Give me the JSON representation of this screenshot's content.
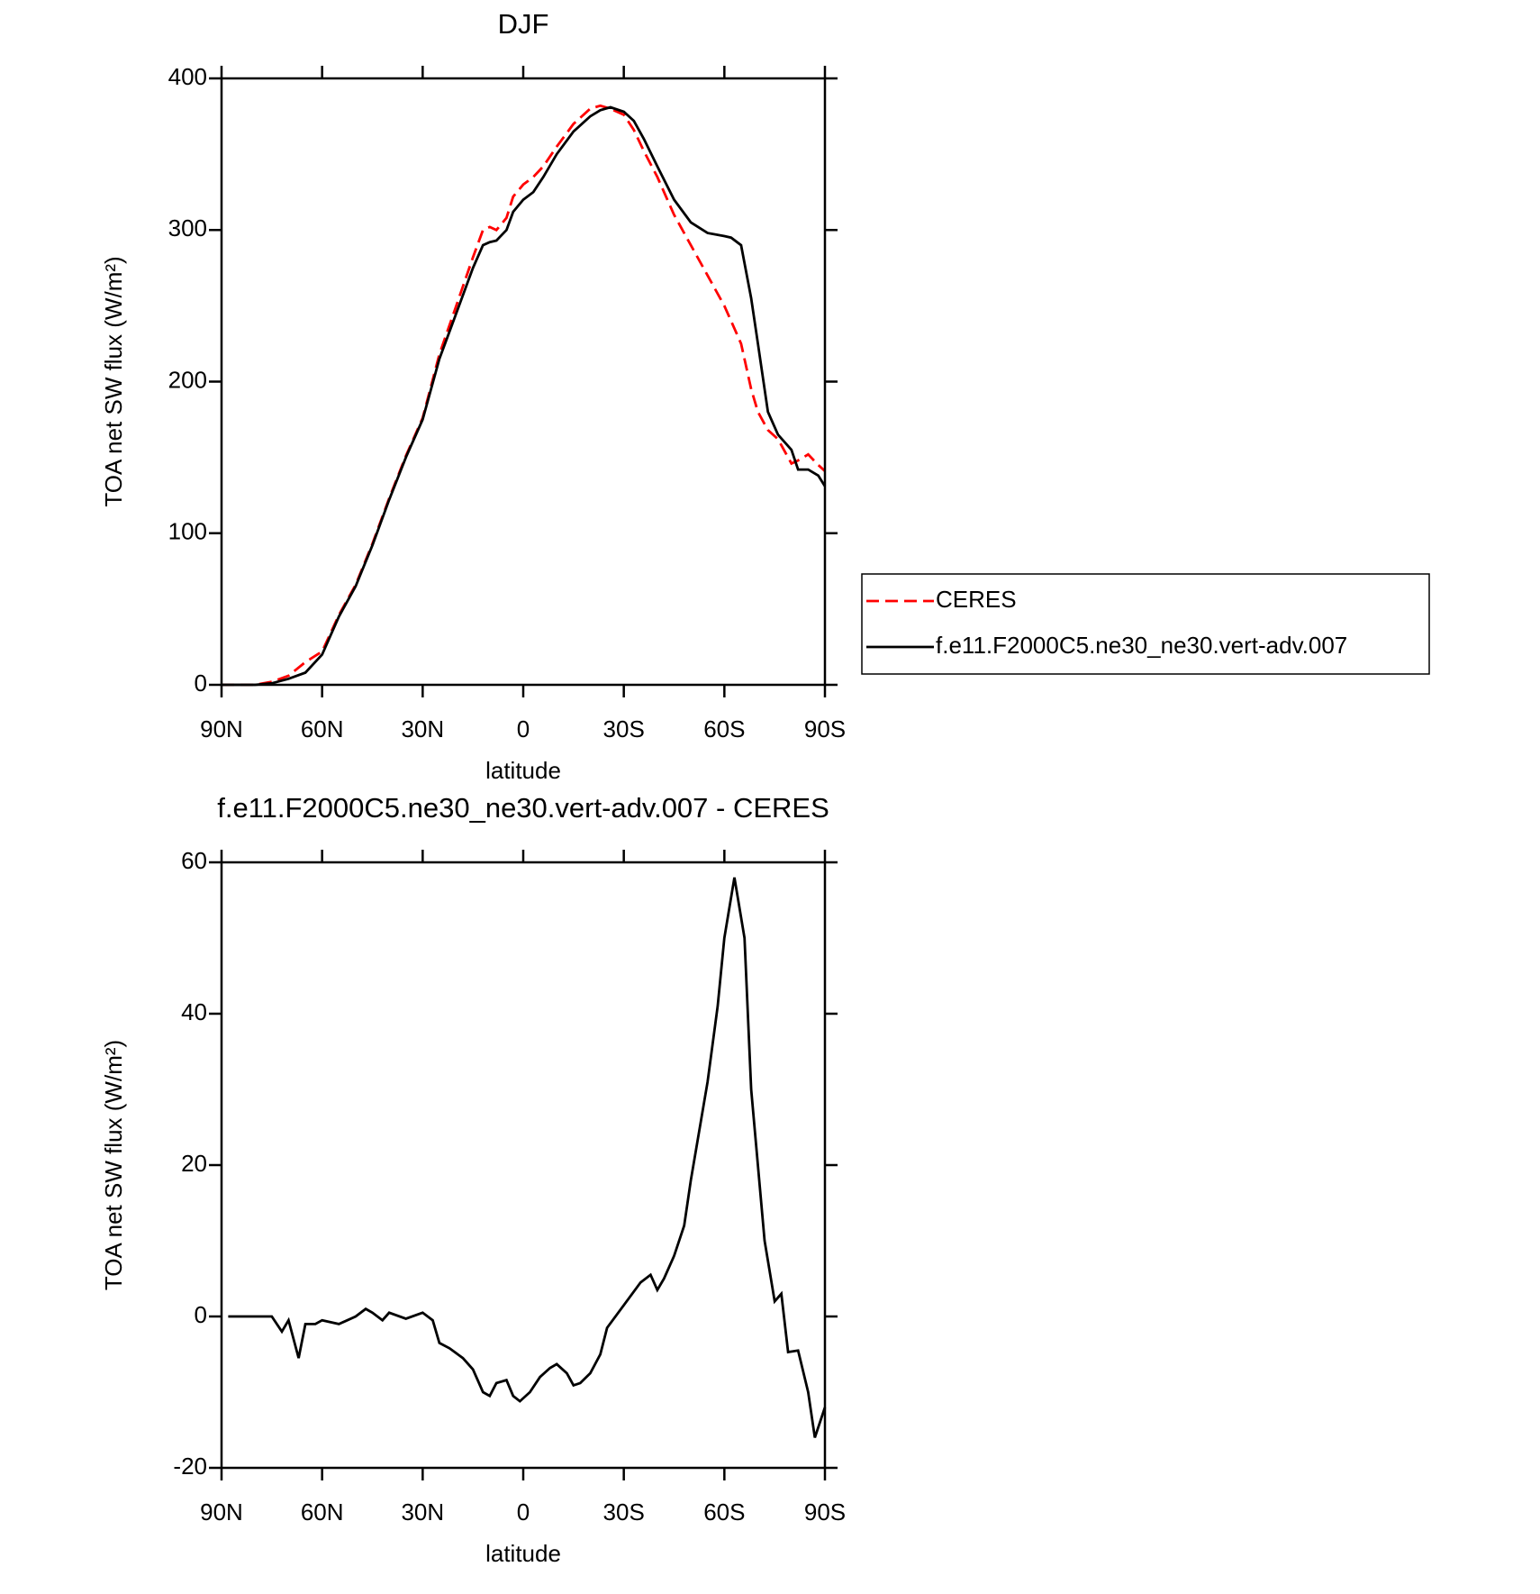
{
  "chart_data": [
    {
      "type": "line",
      "title": "DJF",
      "xlabel": "latitude",
      "ylabel": "TOA net SW flux (W/m²)",
      "x": [
        90,
        85,
        80,
        75,
        70,
        65,
        60,
        55,
        50,
        45,
        40,
        35,
        30,
        25,
        20,
        15,
        12,
        10,
        8,
        5,
        3,
        0,
        -3,
        -6,
        -10,
        -15,
        -20,
        -23,
        -26,
        -30,
        -33,
        -36,
        -40,
        -45,
        -50,
        -55,
        -60,
        -62,
        -65,
        -68,
        -70,
        -73,
        -76,
        -80,
        -82,
        -85,
        -88,
        -90
      ],
      "series": [
        {
          "name": "CERES",
          "color": "#ff0000",
          "linestyle": "dashed",
          "values": [
            0,
            0,
            0,
            2,
            6,
            15,
            22,
            46,
            66,
            93,
            123,
            151,
            176,
            218,
            250,
            282,
            300,
            302,
            300,
            308,
            322,
            330,
            335,
            342,
            355,
            370,
            380,
            382,
            380,
            376,
            366,
            352,
            335,
            310,
            290,
            270,
            250,
            240,
            225,
            195,
            180,
            168,
            162,
            146,
            148,
            152,
            145,
            141
          ]
        },
        {
          "name": "f.e11.F2000C5.ne30_ne30.vert-adv.007",
          "color": "#000000",
          "linestyle": "solid",
          "values": [
            0,
            0,
            0,
            1,
            4,
            8,
            20,
            45,
            65,
            92,
            122,
            150,
            175,
            215,
            245,
            275,
            290,
            292,
            293,
            300,
            312,
            320,
            325,
            335,
            350,
            365,
            375,
            379,
            381,
            378,
            372,
            360,
            342,
            320,
            305,
            298,
            296,
            295,
            290,
            255,
            225,
            180,
            165,
            155,
            142,
            142,
            138,
            131
          ]
        }
      ],
      "xlim": [
        90,
        -90
      ],
      "xticks": [
        {
          "value": 90,
          "label": "90N"
        },
        {
          "value": 60,
          "label": "60N"
        },
        {
          "value": 30,
          "label": "30N"
        },
        0,
        {
          "value": -30,
          "label": "30S"
        },
        {
          "value": -60,
          "label": "60S"
        },
        {
          "value": -90,
          "label": "90S"
        }
      ],
      "ylim": [
        0,
        400
      ],
      "yticks": [
        0,
        100,
        200,
        300,
        400
      ],
      "legend_position": "outside-right"
    },
    {
      "type": "line",
      "title": "f.e11.F2000C5.ne30_ne30.vert-adv.007 - CERES",
      "xlabel": "latitude",
      "ylabel": "TOA net SW flux (W/m²)",
      "x": [
        88,
        80,
        75,
        72,
        70,
        67,
        65,
        62,
        60,
        55,
        50,
        47,
        45,
        42,
        40,
        35,
        30,
        27,
        25,
        22,
        18,
        15,
        12,
        10,
        8,
        5,
        3,
        1,
        -2,
        -5,
        -8,
        -10,
        -13,
        -15,
        -17,
        -20,
        -23,
        -25,
        -30,
        -35,
        -38,
        -40,
        -42,
        -45,
        -48,
        -50,
        -55,
        -58,
        -60,
        -63,
        -66,
        -68,
        -72,
        -75,
        -77,
        -79,
        -82,
        -85,
        -87,
        -90
      ],
      "series": [
        {
          "color": "#000000",
          "linestyle": "solid",
          "values": [
            0,
            0,
            0,
            -2,
            -0.5,
            -5.5,
            -1,
            -1,
            -0.5,
            -1,
            0,
            1,
            0.5,
            -0.5,
            0.5,
            -0.3,
            0.5,
            -0.5,
            -3.5,
            -4.2,
            -5.5,
            -7,
            -10,
            -10.5,
            -8.8,
            -8.4,
            -10.5,
            -11.2,
            -10,
            -8,
            -6.8,
            -6.3,
            -7.5,
            -9.1,
            -8.8,
            -7.5,
            -5,
            -1.5,
            1.5,
            4.5,
            5.5,
            3.5,
            5,
            8,
            12,
            18,
            31,
            41,
            50,
            58,
            50,
            30,
            10,
            2,
            3,
            -4.7,
            -4.5,
            -10,
            -16,
            -12
          ]
        }
      ],
      "xlim": [
        90,
        -90
      ],
      "xticks": [
        {
          "value": 90,
          "label": "90N"
        },
        {
          "value": 60,
          "label": "60N"
        },
        {
          "value": 30,
          "label": "30N"
        },
        0,
        {
          "value": -30,
          "label": "30S"
        },
        {
          "value": -60,
          "label": "60S"
        },
        {
          "value": -90,
          "label": "90S"
        }
      ],
      "ylim": [
        -20,
        60
      ],
      "yticks": [
        -20,
        0,
        20,
        40,
        60
      ]
    }
  ]
}
